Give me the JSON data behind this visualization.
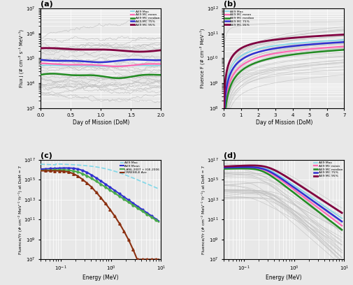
{
  "panel_a": {
    "title": "(a)",
    "xlabel": "Day of Mission (DoM)",
    "ylabel": "Flux j (# cm⁻² s⁻¹ MeV⁻¹)",
    "xlim": [
      0,
      2
    ],
    "ylim": [
      1000.0,
      10000000.0
    ],
    "x_ticks": [
      0,
      0.5,
      1,
      1.5,
      2
    ],
    "legend_labels": [
      "AE9 Max",
      "AE9 MC mean",
      "AE9 MC median",
      "AE9 MC 75%",
      "AE9 MC 95%"
    ],
    "legend_colors": [
      "#80d8e8",
      "#ff69b4",
      "#228B22",
      "#3030d0",
      "#800040"
    ],
    "mc_color": "#c0c0c0",
    "n_mc": 30,
    "mean_level": 55000.0,
    "median_level": 20000.0,
    "p75_level": 80000.0,
    "p95_level": 220000.0,
    "max_level": 50000.0
  },
  "panel_b": {
    "title": "(b)",
    "xlabel": "Day of Mission (DoM)",
    "ylabel": "Fluence F (# cm⁻² MeV⁻¹)",
    "xlim": [
      0,
      7
    ],
    "ylim": [
      100000000.0,
      1000000000000.0
    ],
    "x_ticks": [
      0,
      1,
      2,
      3,
      4,
      5,
      6,
      7
    ],
    "legend_labels": [
      "AE9 Max",
      "AE9 MC mean",
      "AE9 MC median",
      "AE9 MC 75%",
      "AE9 MC 95%"
    ],
    "legend_colors": [
      "#80d8e8",
      "#ff69b4",
      "#228B22",
      "#3030d0",
      "#800040"
    ],
    "mc_color": "#c0c0c0",
    "n_mc": 30
  },
  "panel_c": {
    "title": "(c)",
    "xlabel": "Energy (MeV)",
    "ylabel": "Fluence/Yr (# cm⁻² MeV⁻¹ Yr⁻¹) at DoM = 7",
    "xlim": [
      0.04,
      10
    ],
    "ylim": [
      10000000.0,
      1e+17
    ],
    "legend_labels": [
      "AE9 Mean",
      "LANL-2007 + IGE-2006",
      "AE9 Max",
      "CRRESELE Ave"
    ],
    "legend_colors": [
      "#3030d0",
      "#4aaa4a",
      "#80d8e8",
      "#8B3010"
    ]
  },
  "panel_d": {
    "title": "(d)",
    "xlabel": "Energy (MeV)",
    "ylabel": "Fluence/Yr (# cm⁻² MeV⁻¹ Yr⁻¹) at DoM = 7",
    "xlim": [
      0.04,
      10
    ],
    "ylim": [
      10000000.0,
      1e+17
    ],
    "legend_labels": [
      "AE9 Max",
      "AE9 MC mean",
      "AE9 MC median",
      "AE9 MC 75%",
      "AE9 MC 95%"
    ],
    "legend_colors": [
      "#80d8e8",
      "#ff69b4",
      "#228B22",
      "#3030d0",
      "#800040"
    ],
    "mc_color": "#c0c0c0",
    "n_mc": 30
  },
  "bg_color": "#e8e8e8",
  "grid_color": "#ffffff"
}
